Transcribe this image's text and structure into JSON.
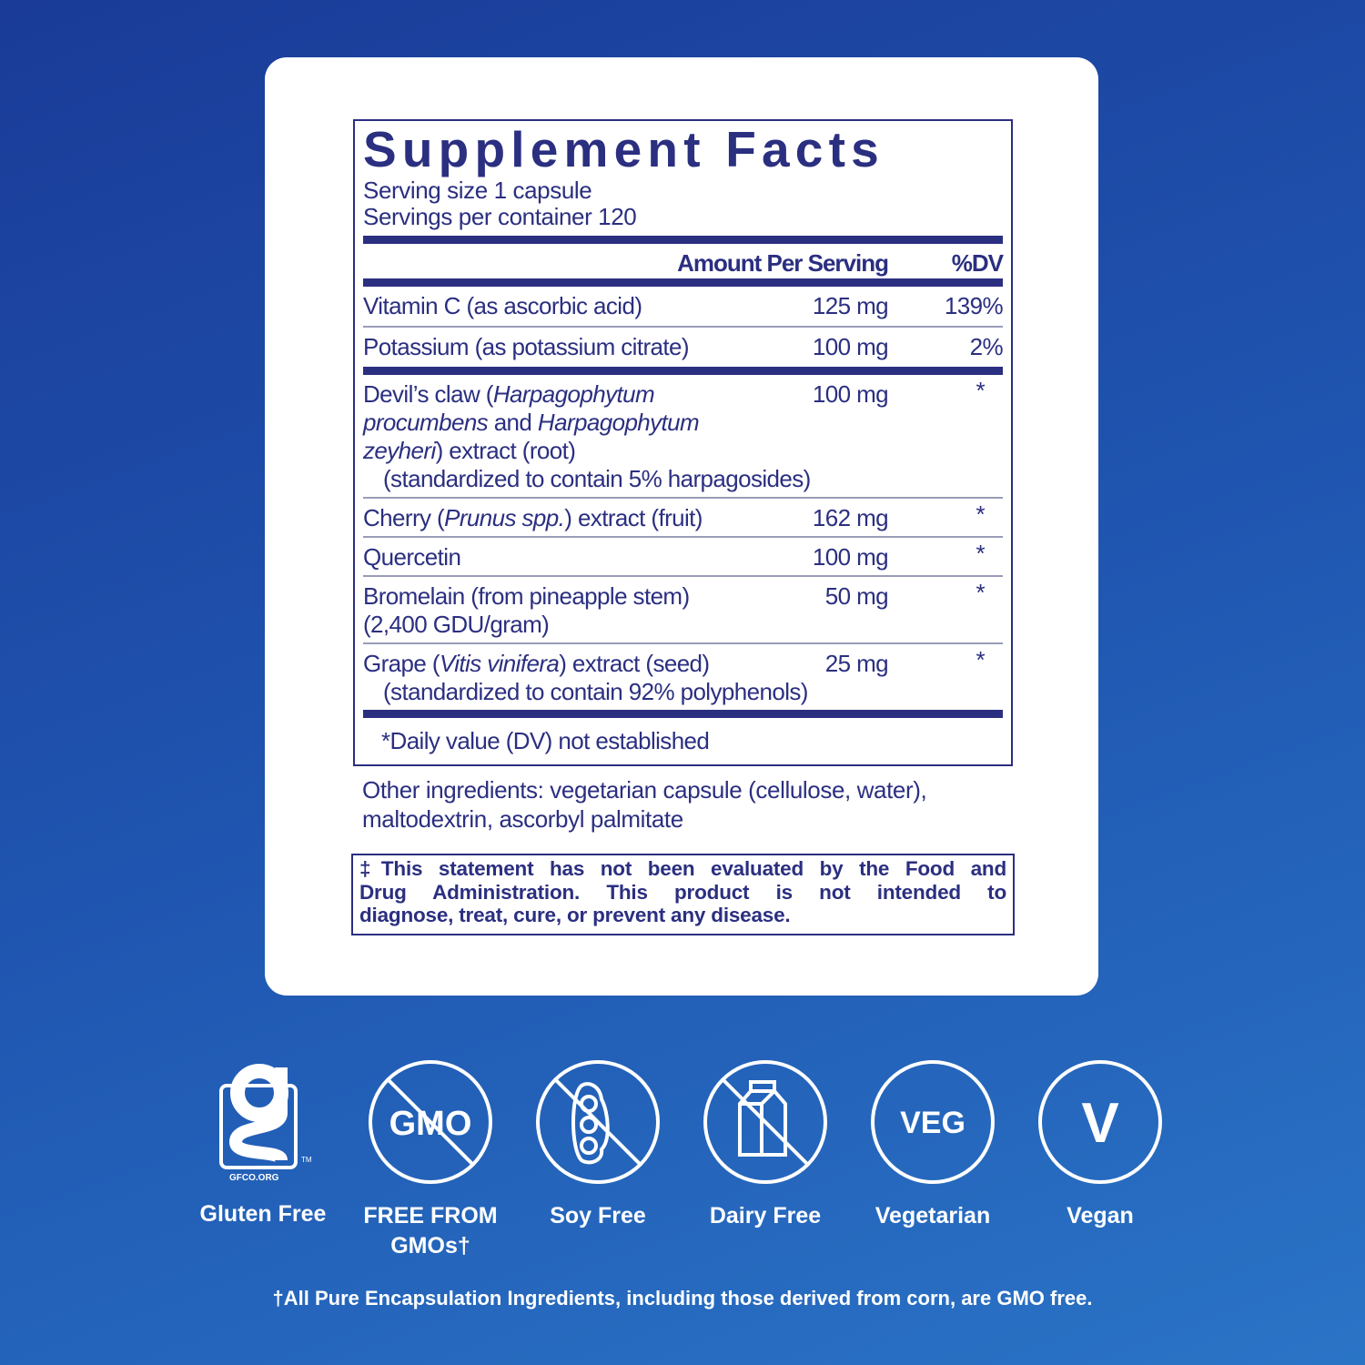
{
  "facts": {
    "title": "Supplement Facts",
    "serving_size": "Serving size  1 capsule",
    "servings_per_container": "Servings per container  120",
    "col_amount": "Amount Per Serving",
    "col_dv": "%DV",
    "rows": [
      {
        "name": "Vitamin C (as ascorbic acid)",
        "amount": "125 mg",
        "dv": "139%"
      },
      {
        "name": "Potassium (as potassium citrate)",
        "amount": "100 mg",
        "dv": "2%"
      },
      {
        "name_a": "Devil’s claw (",
        "name_i1": "Harpagophytum procumbens",
        "name_b": " and ",
        "name_i2": "Harpagophytum zeyheri",
        "name_c": ") extract (root)",
        "sub": "(standardized to contain 5% harpagosides)",
        "amount": "100 mg",
        "dv": "*"
      },
      {
        "name_a": "Cherry (",
        "name_i1": "Prunus spp.",
        "name_b": ") extract (fruit)",
        "amount": "162 mg",
        "dv": "*"
      },
      {
        "name": "Quercetin",
        "amount": "100 mg",
        "dv": "*"
      },
      {
        "name": "Bromelain (from pineapple stem)",
        "sub": "(2,400 GDU/gram)",
        "amount": "50 mg",
        "dv": "*"
      },
      {
        "name_a": "Grape (",
        "name_i1": "Vitis vinifera",
        "name_b": ") extract (seed)",
        "sub": "(standardized to contain 92% polyphenols)",
        "amount": "25 mg",
        "dv": "*"
      }
    ],
    "footnote": "*Daily value (DV) not established"
  },
  "other_ingredients": "Other ingredients: vegetarian capsule (cellulose, water), maltodextrin, ascorbyl palmitate",
  "disclaimer": {
    "line1": "‡This statement has not been evaluated by the Food and",
    "line2": "Drug Administration. This product is not intended to",
    "line3": "diagnose, treat, cure, or prevent any disease."
  },
  "badges": [
    {
      "label": "Gluten Free",
      "icon": "gluten-free-gfco-icon",
      "logo_text": "GFCO.ORG",
      "tm": "TM"
    },
    {
      "label": "FREE FROM GMOs†",
      "icon": "no-gmo-icon",
      "icon_text": "GMO"
    },
    {
      "label": "Soy Free",
      "icon": "no-soy-icon"
    },
    {
      "label": "Dairy Free",
      "icon": "no-dairy-icon"
    },
    {
      "label": "Vegetarian",
      "icon": "vegetarian-icon",
      "icon_text": "VEG"
    },
    {
      "label": "Vegan",
      "icon": "vegan-icon",
      "icon_text": "V"
    }
  ],
  "gmo_footnote": "†All Pure Encapsulation Ingredients, including those derived from corn, are GMO free.",
  "colors": {
    "ink": "#2b2f80",
    "bg_top": "#1a3b98",
    "bg_bottom": "#2a74c6"
  }
}
